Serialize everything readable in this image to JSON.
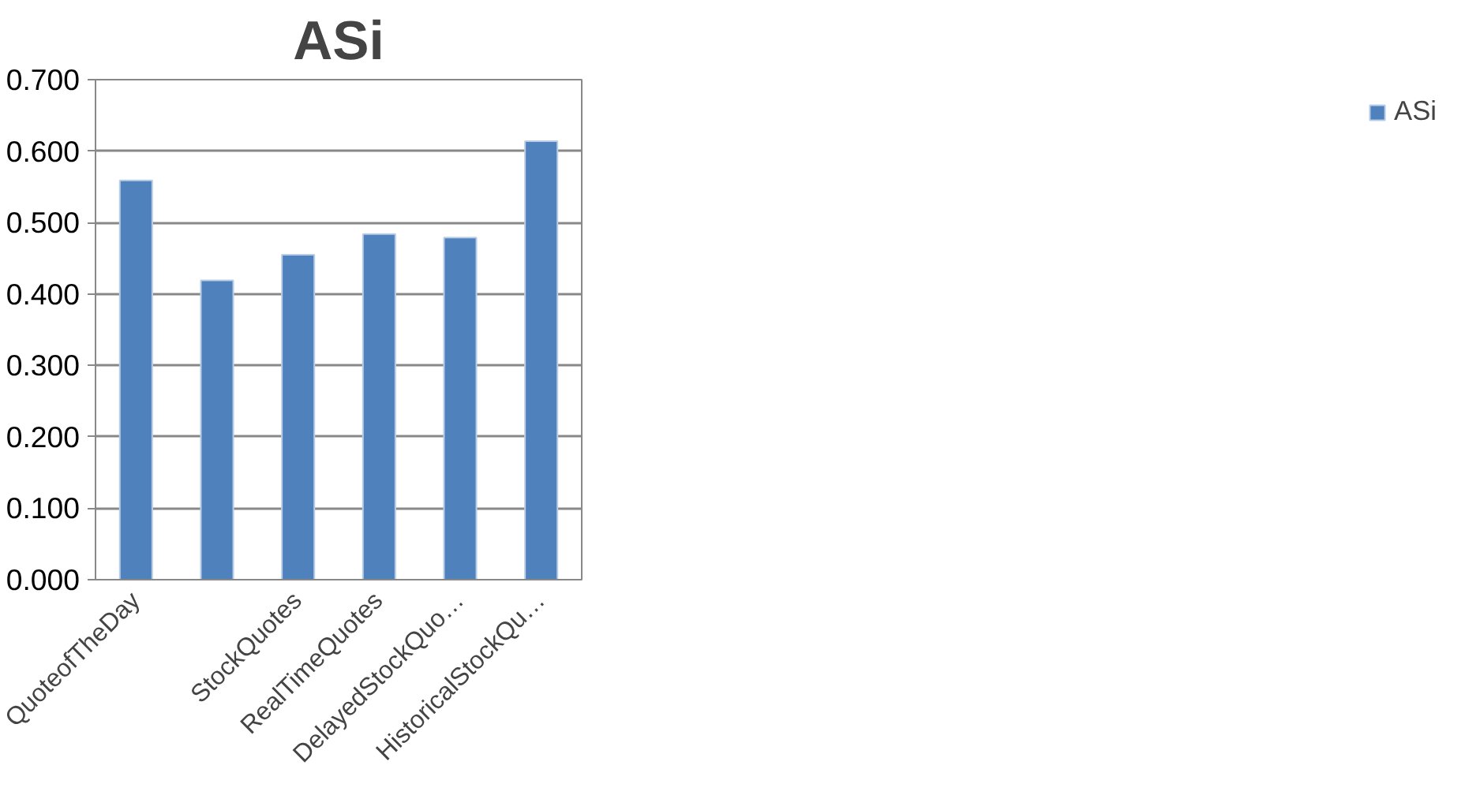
{
  "chart_data": {
    "type": "bar",
    "title": "ASi",
    "categories": [
      "QuoteofTheDay",
      null,
      "StockQuotes",
      "RealTimeQuotes",
      "DelayedStockQuo…",
      "HistoricalStockQu…"
    ],
    "series": [
      {
        "name": "ASi",
        "color": "#4f81bd",
        "values": [
          0.559,
          0.419,
          0.455,
          0.484,
          0.479,
          0.614
        ]
      }
    ],
    "ylim": [
      0,
      0.7
    ],
    "yticks": [
      {
        "value": 0,
        "label": "0.000"
      },
      {
        "value": 0.1,
        "label": "0.100"
      },
      {
        "value": 0.2,
        "label": "0.200"
      },
      {
        "value": 0.3,
        "label": "0.300"
      },
      {
        "value": 0.4,
        "label": "0.400"
      },
      {
        "value": 0.5,
        "label": "0.500"
      },
      {
        "value": 0.6,
        "label": "0.600"
      },
      {
        "value": 0.7,
        "label": "0.700"
      }
    ],
    "grid": "y",
    "legend": "right"
  }
}
